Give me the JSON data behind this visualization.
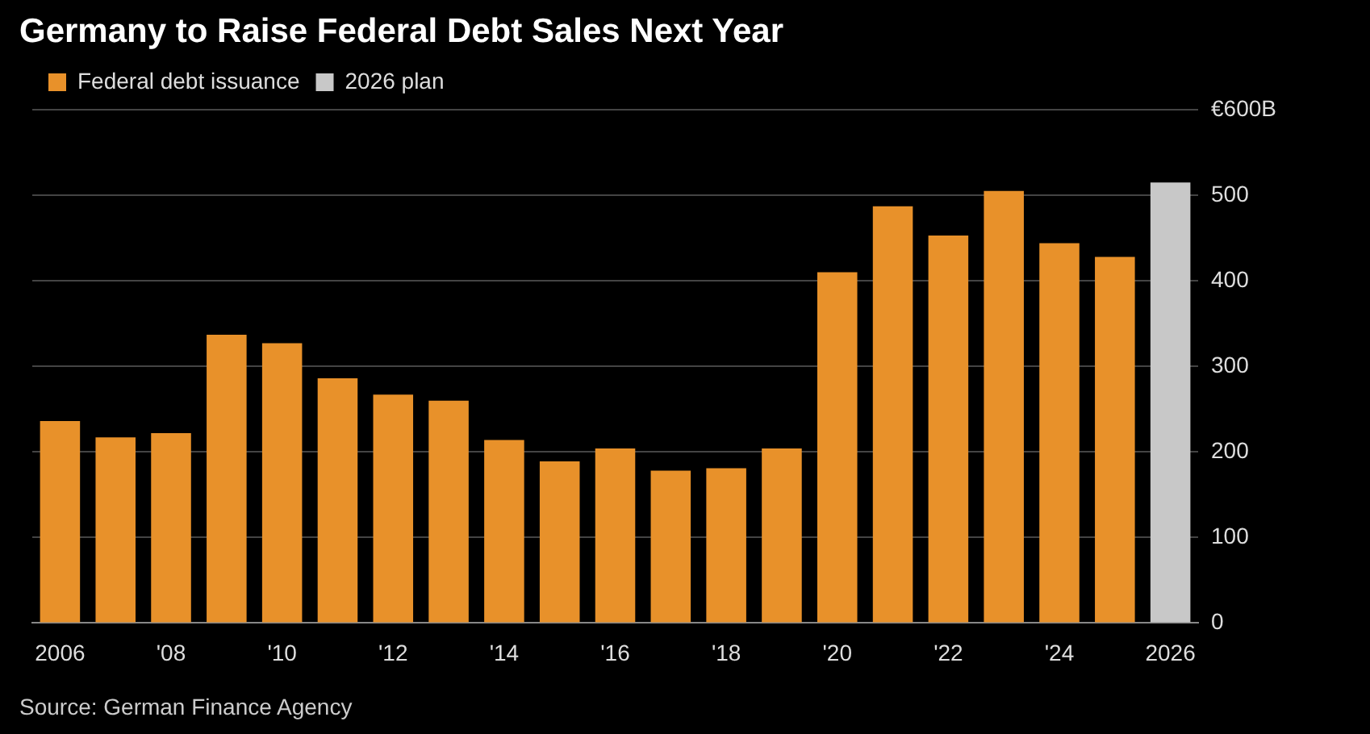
{
  "chart_data": {
    "type": "bar",
    "title": "Germany to Raise Federal Debt Sales Next Year",
    "categories": [
      "2006",
      null,
      "'08",
      null,
      "'10",
      null,
      "'12",
      null,
      "'14",
      null,
      "'16",
      null,
      "'18",
      null,
      "'20",
      null,
      "'22",
      null,
      "'24",
      null,
      "2026"
    ],
    "series": [
      {
        "name": "Federal debt issuance",
        "color": "#e8912a",
        "values": [
          236,
          217,
          222,
          337,
          327,
          286,
          267,
          260,
          214,
          189,
          204,
          178,
          181,
          204,
          410,
          487,
          453,
          505,
          444,
          428,
          null
        ]
      },
      {
        "name": "2026 plan",
        "color": "#c8c8c8",
        "values": [
          null,
          null,
          null,
          null,
          null,
          null,
          null,
          null,
          null,
          null,
          null,
          null,
          null,
          null,
          null,
          null,
          null,
          null,
          null,
          null,
          515
        ]
      }
    ],
    "ylim": [
      0,
      600
    ],
    "yticks": [
      0,
      100,
      200,
      300,
      400,
      500,
      {
        "value": 600,
        "label": "€600B"
      }
    ],
    "grid": "y",
    "legend": "top left",
    "annotations": [
      "Source: German Finance Agency"
    ]
  }
}
